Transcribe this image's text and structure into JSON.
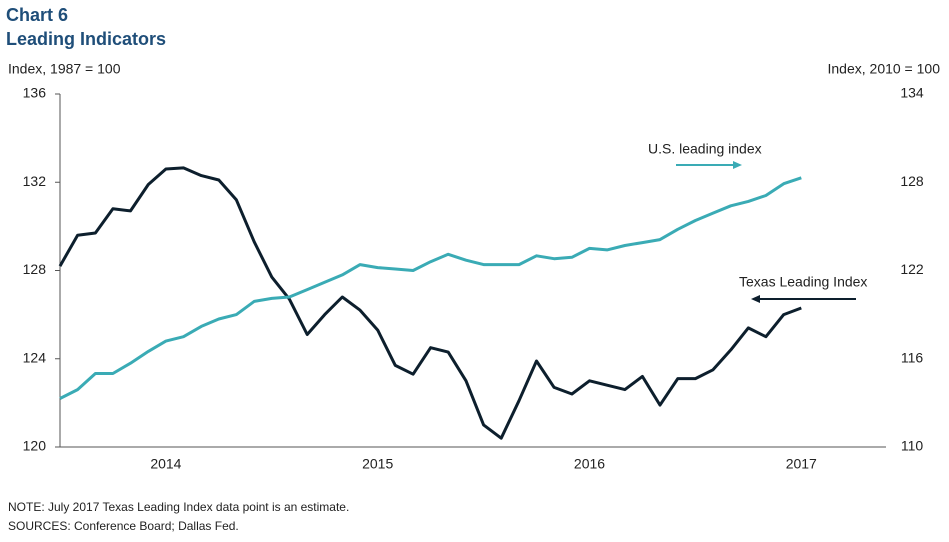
{
  "chart_data": {
    "type": "line",
    "title": "Chart 6",
    "subtitle": "Leading Indicators",
    "y_label": "Index, 1987 = 100",
    "y2_label": "Index, 2010 = 100",
    "annotations": [
      "U.S. leading index",
      "Texas Leading Index"
    ],
    "notes": [
      "NOTE: July 2017 Texas Leading Index data point is an estimate.",
      "SOURCES: Conference  Board; Dallas Fed."
    ],
    "x": [
      2014,
      2014.083,
      2014.167,
      2014.25,
      2014.333,
      2014.417,
      2014.5,
      2014.583,
      2014.667,
      2014.75,
      2014.833,
      2014.917,
      2015,
      2015.083,
      2015.167,
      2015.25,
      2015.333,
      2015.417,
      2015.5,
      2015.583,
      2015.667,
      2015.75,
      2015.833,
      2015.917,
      2016,
      2016.083,
      2016.167,
      2016.25,
      2016.333,
      2016.417,
      2016.5,
      2016.583,
      2016.667,
      2016.75,
      2016.833,
      2016.917,
      2017,
      2017.083,
      2017.167,
      2017.25,
      2017.333,
      2017.417,
      2017.5
    ],
    "series": [
      {
        "name": "Texas Leading Index",
        "color": "#0d1f2d",
        "values": [
          128.2,
          129.6,
          129.7,
          130.8,
          130.7,
          131.9,
          132.6,
          132.65,
          132.3,
          132.1,
          131.2,
          129.3,
          127.7,
          126.7,
          125.1,
          126.0,
          126.8,
          126.2,
          125.3,
          123.7,
          123.3,
          124.5,
          124.3,
          123.0,
          121.0,
          120.4,
          122.1,
          123.9,
          122.7,
          122.4,
          123.0,
          122.8,
          122.6,
          123.2,
          121.9,
          123.1,
          123.1,
          123.5,
          124.4,
          125.4,
          125.0,
          126.0,
          126.3
        ]
      },
      {
        "name": "U.S. leading index",
        "color": "#3aabb5",
        "axis": "y2",
        "values": [
          113.3,
          113.9,
          115.0,
          115.0,
          115.7,
          116.5,
          117.2,
          117.5,
          118.2,
          118.7,
          119.0,
          119.9,
          120.1,
          120.2,
          120.7,
          121.2,
          121.7,
          122.4,
          122.2,
          122.1,
          122.0,
          122.6,
          123.1,
          122.7,
          122.4,
          122.4,
          122.4,
          123.0,
          122.8,
          122.9,
          123.5,
          123.4,
          123.7,
          123.9,
          124.1,
          124.8,
          125.4,
          125.9,
          126.4,
          126.7,
          127.1,
          127.9,
          128.3
        ]
      }
    ],
    "xlim": [
      2014,
      2017.9
    ],
    "xticks": [
      {
        "value": 2014.5,
        "label": "2014"
      },
      {
        "value": 2015.5,
        "label": "2015"
      },
      {
        "value": 2016.5,
        "label": "2016"
      },
      {
        "value": 2017.5,
        "label": "2017"
      }
    ],
    "ylim": [
      120,
      136
    ],
    "yticks": [
      120,
      124,
      128,
      132,
      136
    ],
    "y2lim": [
      110,
      134
    ],
    "y2ticks": [
      110,
      116,
      122,
      128,
      134
    ],
    "grid": false
  }
}
